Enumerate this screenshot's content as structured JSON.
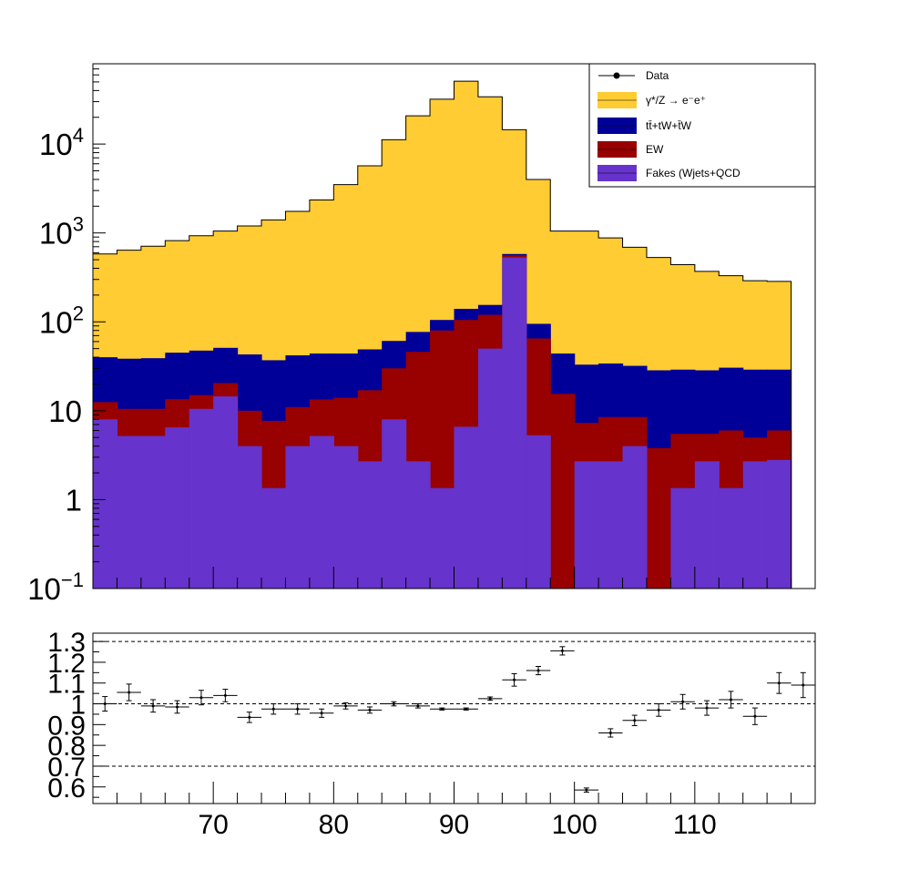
{
  "chart_data": [
    {
      "type": "area",
      "yscale": "log",
      "ylim": [
        0.1,
        80000
      ],
      "xlim": [
        60,
        120
      ],
      "bin_edges": [
        60,
        62,
        64,
        66,
        68,
        70,
        72,
        74,
        76,
        78,
        80,
        82,
        84,
        86,
        88,
        90,
        92,
        94,
        96,
        98,
        100,
        102,
        104,
        106,
        108,
        110,
        112,
        114,
        116,
        118,
        120
      ],
      "y_ticks": [
        {
          "value": 0.1,
          "base": "10",
          "exp": "−1"
        },
        {
          "value": 1,
          "base": "1",
          "exp": ""
        },
        {
          "value": 10,
          "base": "10",
          "exp": ""
        },
        {
          "value": 100,
          "base": "10",
          "exp": "2"
        },
        {
          "value": 1000,
          "base": "10",
          "exp": "3"
        },
        {
          "value": 10000,
          "base": "10",
          "exp": "4"
        }
      ],
      "stack_tops": {
        "fakes": [
          8,
          5.2,
          5.2,
          6.5,
          10.5,
          14.5,
          4,
          1.35,
          4,
          5.2,
          4,
          2.7,
          8,
          2.7,
          1.35,
          6.6,
          50,
          530,
          5.3,
          0.1,
          2.7,
          2.7,
          4,
          0.1,
          1.35,
          2.7,
          1.35,
          2.7,
          2.8,
          0.1
        ],
        "ew": [
          12.5,
          10.5,
          10.5,
          13.5,
          15,
          20.5,
          10,
          7.7,
          11,
          13.4,
          14,
          17,
          30,
          46,
          80,
          105,
          120,
          560,
          65,
          15.5,
          7.3,
          8.5,
          8.5,
          3.8,
          5.5,
          5.5,
          6,
          5,
          6,
          0.1
        ],
        "ttbar": [
          40,
          38.5,
          39,
          45,
          47.5,
          51,
          43,
          37,
          42,
          44,
          44,
          49,
          61,
          77,
          105,
          140,
          155,
          580,
          95,
          44,
          33,
          34,
          32,
          28.5,
          29,
          28.5,
          30.5,
          29,
          29,
          0.1
        ],
        "zee": [
          580,
          640,
          710,
          820,
          930,
          1050,
          1200,
          1400,
          1750,
          2350,
          3500,
          5700,
          11200,
          20800,
          32000,
          51000,
          34000,
          14500,
          4000,
          1050,
          1050,
          880,
          690,
          530,
          440,
          370,
          330,
          290,
          285,
          0.1
        ]
      },
      "series": [
        {
          "name": "Data",
          "color": "#000000"
        },
        {
          "name": "γ*/Z → e⁻e⁺",
          "color": "#ffcc33"
        },
        {
          "name": "tt̄+tW+t̄W",
          "color": "#000099"
        },
        {
          "name": "EW",
          "color": "#990000"
        },
        {
          "name": "Fakes (Wjets+QCD",
          "color": "#6633cc"
        }
      ],
      "legend_position": "top-right"
    },
    {
      "type": "scatter",
      "xlim": [
        60,
        120
      ],
      "ylim": [
        0.52,
        1.34
      ],
      "x_ticks": [
        70,
        80,
        90,
        100,
        110
      ],
      "y_ticks": [
        "0.6",
        "0.7",
        "0.8",
        "0.9",
        "1",
        "1.1",
        "1.2",
        "1.3"
      ],
      "reference_lines": [
        0.7,
        1.0,
        1.3
      ],
      "x": [
        61,
        63,
        65,
        67,
        69,
        71,
        73,
        75,
        77,
        79,
        81,
        83,
        85,
        87,
        89,
        91,
        93,
        95,
        97,
        99,
        101,
        103,
        105,
        107,
        109,
        111,
        113,
        115,
        117,
        119
      ],
      "y": [
        1.0,
        1.055,
        0.99,
        0.985,
        1.03,
        1.04,
        0.935,
        0.975,
        0.975,
        0.955,
        0.99,
        0.97,
        1.0,
        0.99,
        0.975,
        0.975,
        1.025,
        1.115,
        1.16,
        1.255,
        0.585,
        0.86,
        0.92,
        0.97,
        1.01,
        0.98,
        1.02,
        0.94,
        1.1,
        1.09
      ],
      "y_err": [
        0.035,
        0.04,
        0.03,
        0.03,
        0.035,
        0.03,
        0.025,
        0.025,
        0.025,
        0.02,
        0.015,
        0.015,
        0.01,
        0.01,
        0.005,
        0.005,
        0.008,
        0.03,
        0.02,
        0.02,
        0.01,
        0.02,
        0.025,
        0.03,
        0.035,
        0.035,
        0.04,
        0.04,
        0.05,
        0.06
      ]
    }
  ]
}
